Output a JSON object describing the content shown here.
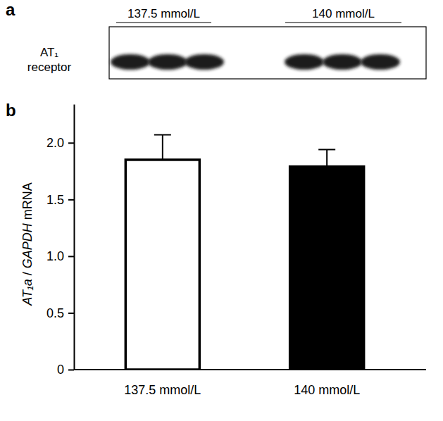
{
  "chart_data": {
    "type": "bar",
    "annotations": [
      "a",
      "b",
      "AT₁ receptor"
    ],
    "y_label": "AT₁a / GAPDH mRNA",
    "categories": [
      "137.5 mmol/L",
      "140 mmol/L"
    ],
    "values": [
      1.85,
      1.79
    ],
    "errors": [
      0.22,
      0.15
    ],
    "colors": [
      "#ffffff",
      "#000000"
    ],
    "ylim": [
      0,
      2.34
    ],
    "yticks": [
      0,
      0.5,
      {
        "value": 1,
        "label": "1.0"
      },
      1.5,
      {
        "value": 2,
        "label": "2.0"
      }
    ],
    "grid": false
  }
}
